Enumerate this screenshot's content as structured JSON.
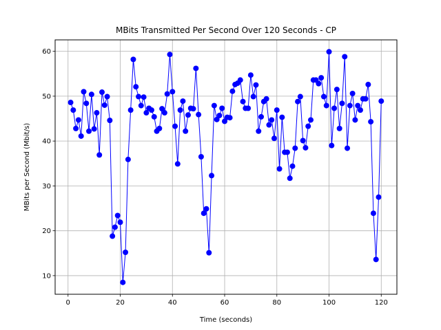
{
  "chart_data": {
    "type": "line",
    "title": "MBits Transmitted Per Second Over 120 Seconds - CP",
    "xlabel": "Time (seconds)",
    "ylabel": "MBits per Second (Mbit/s)",
    "xlim": [
      -4.95,
      126.0
    ],
    "ylim": [
      5.85,
      62.55
    ],
    "xticks": [
      0,
      20,
      40,
      60,
      80,
      100,
      120
    ],
    "yticks": [
      10,
      20,
      30,
      40,
      50,
      60
    ],
    "grid": true,
    "series": [
      {
        "marker": "circle",
        "color": "#0000ff",
        "x": [
          1,
          2,
          3,
          4,
          5,
          6,
          7,
          8,
          9,
          10,
          11,
          12,
          13,
          14,
          15,
          16,
          17,
          18,
          19,
          20,
          21,
          22,
          23,
          24,
          25,
          26,
          27,
          28,
          29,
          30,
          31,
          32,
          33,
          34,
          35,
          36,
          37,
          38,
          39,
          40,
          41,
          42,
          43,
          44,
          45,
          46,
          47,
          48,
          49,
          50,
          51,
          52,
          53,
          54,
          55,
          56,
          57,
          58,
          59,
          60,
          61,
          62,
          63,
          64,
          65,
          66,
          67,
          68,
          69,
          70,
          71,
          72,
          73,
          74,
          75,
          76,
          77,
          78,
          79,
          80,
          81,
          82,
          83,
          84,
          85,
          86,
          87,
          88,
          89,
          90,
          91,
          92,
          93,
          94,
          95,
          96,
          97,
          98,
          99,
          100,
          101,
          102,
          103,
          104,
          105,
          106,
          107,
          108,
          109,
          110,
          111,
          112,
          113,
          114,
          115,
          116,
          117,
          118,
          119,
          120
        ],
        "y": [
          48.6,
          46.9,
          42.8,
          44.7,
          41.1,
          51.0,
          48.4,
          42.2,
          50.4,
          42.7,
          46.3,
          36.9,
          50.9,
          48.0,
          49.9,
          44.6,
          18.8,
          20.8,
          23.4,
          21.9,
          8.5,
          15.2,
          35.9,
          46.9,
          58.2,
          52.1,
          49.9,
          47.9,
          49.8,
          46.3,
          47.3,
          46.9,
          45.4,
          42.2,
          42.8,
          47.2,
          46.3,
          50.5,
          59.3,
          51.0,
          43.3,
          34.9,
          46.9,
          48.9,
          42.2,
          45.8,
          47.3,
          47.2,
          56.2,
          45.9,
          36.5,
          23.9,
          24.9,
          15.1,
          32.3,
          47.9,
          44.8,
          45.7,
          47.3,
          44.4,
          45.3,
          45.2,
          51.1,
          52.6,
          52.9,
          53.6,
          48.8,
          47.3,
          47.3,
          54.7,
          49.9,
          52.5,
          42.2,
          45.4,
          48.8,
          49.4,
          43.6,
          44.7,
          40.6,
          46.9,
          33.8,
          45.3,
          37.5,
          37.5,
          31.7,
          34.4,
          38.4,
          48.8,
          49.9,
          40.1,
          38.5,
          43.3,
          44.7,
          53.6,
          53.6,
          52.8,
          54.1,
          49.9,
          47.9,
          59.9,
          39.0,
          47.3,
          51.5,
          42.8,
          48.4,
          58.8,
          38.4,
          47.9,
          50.6,
          44.7,
          47.9,
          46.9,
          49.4,
          49.4,
          52.6,
          44.3,
          23.9,
          13.6,
          27.5,
          48.9
        ]
      }
    ]
  }
}
